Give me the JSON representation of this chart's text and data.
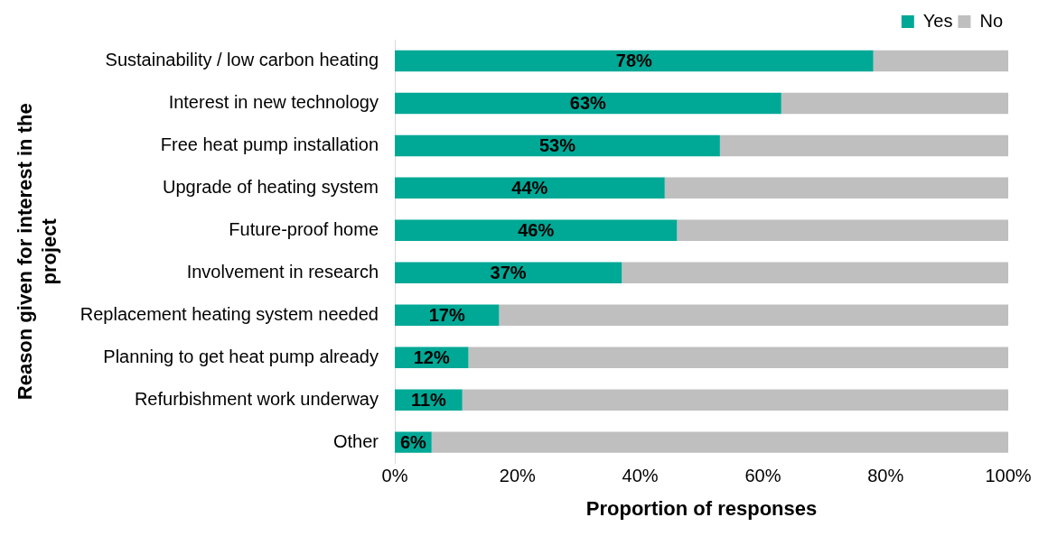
{
  "chart_data": {
    "type": "bar",
    "orientation": "horizontal",
    "stacked": true,
    "xlabel": "Proportion of responses",
    "ylabel": "Reason given for interest in the project",
    "categories": [
      "Sustainability / low carbon heating",
      "Interest in new technology",
      "Free heat pump installation",
      "Upgrade of heating system",
      "Future-proof home",
      "Involvement in research",
      "Replacement heating system needed",
      "Planning to get heat pump already",
      "Refurbishment work underway",
      "Other"
    ],
    "series": [
      {
        "name": "Yes",
        "color": "#00a896",
        "values": [
          78,
          63,
          53,
          44,
          46,
          37,
          17,
          12,
          11,
          6
        ],
        "value_labels": [
          "78%",
          "63%",
          "53%",
          "44%",
          "46%",
          "37%",
          "17%",
          "12%",
          "11%",
          "6%"
        ]
      },
      {
        "name": "No",
        "color": "#bfbfbf",
        "values": [
          22,
          37,
          47,
          56,
          54,
          63,
          83,
          88,
          89,
          94
        ]
      }
    ],
    "xlim": [
      0,
      100
    ],
    "xticks": [
      {
        "value": 0,
        "label": "0%"
      },
      {
        "value": 20,
        "label": "20%"
      },
      {
        "value": 40,
        "label": "40%"
      },
      {
        "value": 60,
        "label": "60%"
      },
      {
        "value": 80,
        "label": "80%"
      },
      {
        "value": 100,
        "label": "100%"
      }
    ],
    "grid": false,
    "legend": "top right"
  }
}
